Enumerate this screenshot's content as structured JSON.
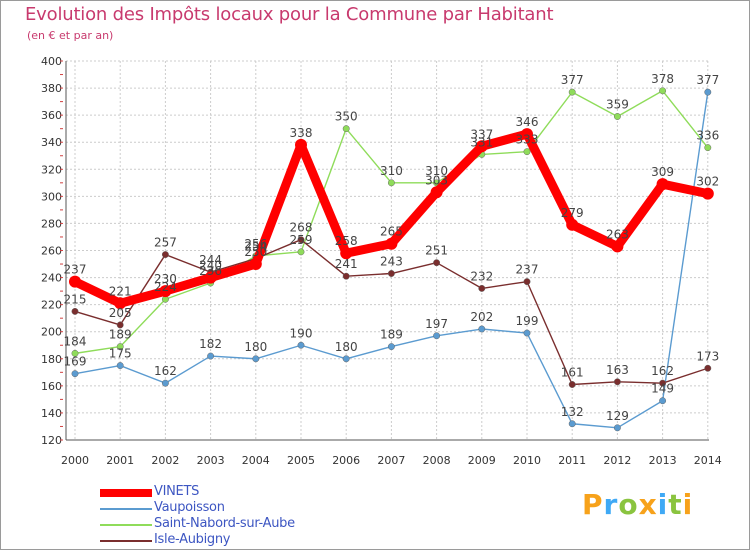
{
  "header": {
    "title": "Evolution des Impôts locaux pour la Commune par Habitant",
    "subtitle": "(en € et par an)"
  },
  "chart_data": {
    "type": "line",
    "categories": [
      "2000",
      "2001",
      "2002",
      "2003",
      "2004",
      "2005",
      "2006",
      "2007",
      "2008",
      "2009",
      "2010",
      "2011",
      "2012",
      "2013",
      "2014"
    ],
    "ylim": [
      120,
      400
    ],
    "yticks": [
      120,
      140,
      160,
      180,
      200,
      220,
      240,
      260,
      280,
      300,
      320,
      340,
      360,
      380,
      400
    ],
    "grid": true,
    "series": [
      {
        "name": "Saint-Nabord-sur-Aube",
        "color": "#8fdc5a",
        "label_color": "#444444",
        "values": [
          184,
          189,
          224,
          236,
          256,
          259,
          350,
          310,
          310,
          331,
          333,
          377,
          359,
          378,
          336
        ],
        "labels": [
          "184",
          "189",
          "224",
          "236",
          "256",
          "259",
          "350",
          "310",
          "310",
          "331",
          "333",
          "377",
          "359",
          "378",
          "336"
        ]
      },
      {
        "name": "Vaupoisson",
        "color": "#5b9bd0",
        "label_color": "#444444",
        "values": [
          169,
          175,
          162,
          182,
          180,
          190,
          180,
          189,
          197,
          202,
          199,
          132,
          129,
          149,
          377
        ],
        "labels": [
          "169",
          "175",
          "162",
          "182",
          "180",
          "190",
          "180",
          "189",
          "197",
          "202",
          "199",
          "132",
          "129",
          "149",
          "377"
        ]
      },
      {
        "name": "Isle-Aubigny",
        "color": "#7a2e2e",
        "label_color": "#444444",
        "values": [
          215,
          205,
          257,
          244,
          254,
          268,
          241,
          243,
          251,
          232,
          237,
          161,
          163,
          162,
          173
        ],
        "labels": [
          "215",
          "205",
          "257",
          "244",
          "254",
          "268",
          "241",
          "243",
          "251",
          "232",
          "237",
          "161",
          "163",
          "162",
          "173"
        ]
      },
      {
        "name": "VINETS",
        "color": "#ff0000",
        "label_color": "#444444",
        "bold": true,
        "values": [
          237,
          221,
          230,
          240,
          250,
          338,
          258,
          265,
          303,
          337,
          346,
          279,
          263,
          309,
          302
        ],
        "labels": [
          "237",
          "221",
          "230",
          "240",
          "250",
          "338",
          "258",
          "265",
          "303",
          "337",
          "346",
          "279",
          "263",
          "309",
          "302"
        ]
      }
    ]
  },
  "legend": {
    "items": [
      {
        "name": "VINETS",
        "color": "#ff0000"
      },
      {
        "name": "Vaupoisson",
        "color": "#5b9bd0"
      },
      {
        "name": "Saint-Nabord-sur-Aube",
        "color": "#8fdc5a"
      },
      {
        "name": "Isle-Aubigny",
        "color": "#7a2e2e"
      }
    ]
  },
  "logo": {
    "letters": [
      "P",
      "r",
      "o",
      "x",
      "i",
      "t",
      "i"
    ],
    "colors": [
      "#f7a21b",
      "#3fa9f5",
      "#8ac43f",
      "#f7a21b",
      "#3fa9f5",
      "#8ac43f",
      "#f7a21b"
    ]
  }
}
